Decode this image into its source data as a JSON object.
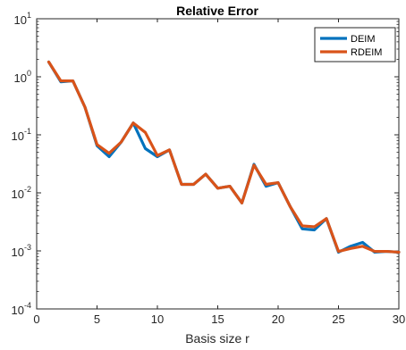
{
  "chart_data": {
    "type": "line",
    "title": "Relative Error",
    "xlabel": "Basis size r",
    "ylabel": "",
    "xlim": [
      0,
      30
    ],
    "ylim": [
      0.0001,
      10
    ],
    "yscale": "log",
    "grid": false,
    "legend_position": "top-right",
    "x_ticks": [
      "0",
      "5",
      "10",
      "15",
      "20",
      "25",
      "30"
    ],
    "y_ticks": [
      {
        "base": "10",
        "exp": "1"
      },
      {
        "base": "10",
        "exp": "0"
      },
      {
        "base": "10",
        "exp": "-1"
      },
      {
        "base": "10",
        "exp": "-2"
      },
      {
        "base": "10",
        "exp": "-3"
      },
      {
        "base": "10",
        "exp": "-4"
      }
    ],
    "x": [
      1,
      2,
      3,
      4,
      5,
      6,
      7,
      8,
      9,
      10,
      11,
      12,
      13,
      14,
      15,
      16,
      17,
      18,
      19,
      20,
      21,
      22,
      23,
      24,
      25,
      26,
      27,
      28,
      29,
      30
    ],
    "series": [
      {
        "name": "DEIM",
        "color": "#0072BD",
        "values": [
          1.8,
          0.82,
          0.85,
          0.3,
          0.065,
          0.042,
          0.075,
          0.16,
          0.058,
          0.042,
          0.055,
          0.014,
          0.014,
          0.021,
          0.012,
          0.013,
          0.0067,
          0.031,
          0.013,
          0.015,
          0.0058,
          0.0024,
          0.0023,
          0.0036,
          0.00095,
          0.0012,
          0.0014,
          0.00095,
          0.00098,
          0.00095
        ]
      },
      {
        "name": "RDEIM",
        "color": "#D95319",
        "values": [
          1.8,
          0.85,
          0.85,
          0.3,
          0.068,
          0.048,
          0.075,
          0.16,
          0.11,
          0.044,
          0.055,
          0.014,
          0.014,
          0.021,
          0.012,
          0.013,
          0.0067,
          0.03,
          0.014,
          0.015,
          0.0058,
          0.0027,
          0.0026,
          0.0036,
          0.00098,
          0.0011,
          0.0012,
          0.00098,
          0.00098,
          0.00095
        ]
      }
    ]
  }
}
